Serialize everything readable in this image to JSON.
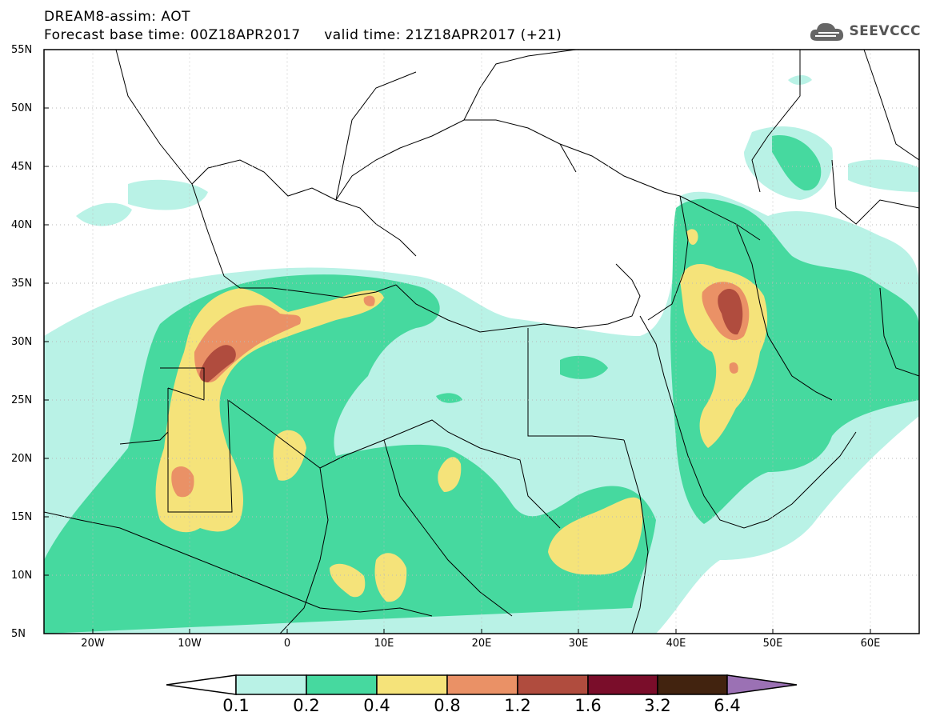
{
  "header": {
    "line1": "DREAM8-assim: AOT",
    "line2": "Forecast base time: 00Z18APR2017     valid time: 21Z18APR2017 (+21)"
  },
  "logo": {
    "text": "SEEVCCC",
    "icon": "cloud-icon"
  },
  "map": {
    "lat_labels": [
      "55N",
      "50N",
      "45N",
      "40N",
      "35N",
      "30N",
      "25N",
      "20N",
      "15N",
      "10N",
      "5N"
    ],
    "lon_labels": [
      "20W",
      "10W",
      "0",
      "10E",
      "20E",
      "30E",
      "40E",
      "50E",
      "60E"
    ],
    "lon_range": [
      -25,
      65
    ],
    "lat_range": [
      5,
      55
    ],
    "grid": "dotted"
  },
  "colorbar": {
    "labels": [
      "0.1",
      "0.2",
      "0.4",
      "0.8",
      "1.2",
      "1.6",
      "3.2",
      "6.4"
    ],
    "colors": [
      "#b9f2e6",
      "#46d99f",
      "#f5e37a",
      "#ea9166",
      "#b04c3e",
      "#7a0d2a",
      "#42230f",
      "#9b71b4"
    ]
  }
}
